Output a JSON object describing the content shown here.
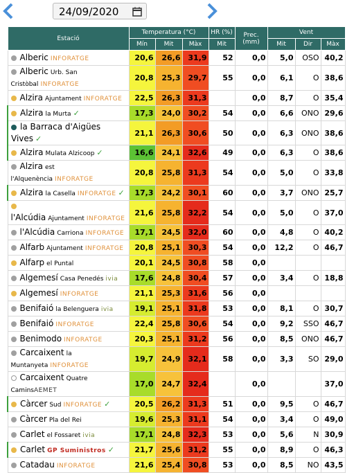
{
  "header": {
    "date": "24/09/2020"
  },
  "table": {
    "columns": [
      "Estació",
      "Temperatura (°C)",
      "HR (%)",
      "Prec. (mm)",
      "Vent"
    ],
    "subcolumns": [
      "Mín",
      "Mit",
      "Màx",
      "Mit",
      "",
      "Mit",
      "Dir",
      "Màx"
    ],
    "rows": [
      {
        "station": "Alberic",
        "sub": null,
        "tag": "INFORATGE",
        "check": false,
        "dot": "#a0a0a0",
        "values": [
          "20,6",
          "26,6",
          "31,9",
          "52",
          "0,0",
          "5,0",
          "OSO",
          "40,2"
        ]
      },
      {
        "station": "Alberic",
        "sub": "Urb. San Cristòbal",
        "tag": "INFORATGE",
        "check": false,
        "dot": "#a0a0a0",
        "values": [
          "20,8",
          "25,3",
          "29,7",
          "55",
          "0,0",
          "6,1",
          "O",
          "38,6"
        ]
      },
      {
        "station": "Alzira",
        "sub": "Ajuntament",
        "tag": "INFORATGE",
        "check": false,
        "dot": "#e8b84a",
        "values": [
          "22,5",
          "26,3",
          "31,3",
          null,
          "0,0",
          "8,7",
          "O",
          "35,4"
        ]
      },
      {
        "station": "Alzira",
        "sub": "la Murta",
        "tag": null,
        "check": true,
        "dot": "#e8b84a",
        "values": [
          "17,3",
          "24,0",
          "30,2",
          "54",
          "0,0",
          "6,6",
          "ONO",
          "29,6"
        ]
      },
      {
        "station": "la Barraca d'Aigües Vives",
        "sub": null,
        "tag": null,
        "check": true,
        "dot": "#1e5c5c",
        "values": [
          "21,1",
          "26,3",
          "30,6",
          "50",
          "0,0",
          "6,3",
          "ONO",
          "38,6"
        ]
      },
      {
        "station": "Alzira",
        "sub": "Mulata Alzicoop",
        "tag": null,
        "check": true,
        "dot": "#e8b84a",
        "values": [
          "16,6",
          "24,1",
          "32,6",
          "49",
          "0,0",
          "6,3",
          "O",
          "38,6"
        ]
      },
      {
        "station": "Alzira",
        "sub": "est l'Alquenència",
        "tag": "INFORATGE",
        "check": false,
        "dot": "#a0a0a0",
        "values": [
          "20,8",
          "25,8",
          "31,3",
          "54",
          "0,0",
          "5,0",
          "O",
          "33,8"
        ]
      },
      {
        "station": "Alzira",
        "sub": "la Casella",
        "tag": "INFORATGE",
        "check": true,
        "dot": "#e8b84a",
        "values": [
          "17,3",
          "24,2",
          "30,1",
          "60",
          "0,0",
          "3,7",
          "ONO",
          "25,7"
        ]
      },
      {
        "station": "l'Alcúdia",
        "sub": "Ajuntament",
        "tag": "INFORATGE",
        "check": false,
        "dot": "#e8b84a",
        "values": [
          "21,6",
          "25,8",
          "32,2",
          "54",
          "0,0",
          "5,0",
          "O",
          "37,0"
        ]
      },
      {
        "station": "l'Alcúdia",
        "sub": "Carriona",
        "tag": "INFORATGE",
        "check": false,
        "dot": "#a0a0a0",
        "values": [
          "17,1",
          "24,5",
          "32,0",
          "60",
          "0,0",
          "4,8",
          "O",
          "40,2"
        ]
      },
      {
        "station": "Alfarb",
        "sub": "Ajuntament",
        "tag": "INFORATGE",
        "check": false,
        "dot": "#a0a0a0",
        "values": [
          "20,8",
          "25,1",
          "30,3",
          "54",
          "0,0",
          "12,2",
          "O",
          "46,7"
        ]
      },
      {
        "station": "Alfarp",
        "sub": "el Puntal",
        "tag": null,
        "check": false,
        "dot": "#e8b84a",
        "values": [
          "20,1",
          "24,5",
          "30,8",
          "58",
          "0,0",
          null,
          null,
          null
        ]
      },
      {
        "station": "Algemesí",
        "sub": "Casa Penedés",
        "tag": "ivia",
        "check": false,
        "dot": "#a0a0a0",
        "values": [
          "17,6",
          "24,8",
          "30,4",
          "57",
          "0,0",
          "3,4",
          "O",
          "18,8"
        ]
      },
      {
        "station": "Algemesí",
        "sub": null,
        "tag": "INFORATGE",
        "check": false,
        "dot": "#e8b84a",
        "values": [
          "21,1",
          "25,3",
          "31,6",
          "56",
          "0,0",
          null,
          null,
          null
        ]
      },
      {
        "station": "Benifaió",
        "sub": "la Belenguera",
        "tag": "ivia",
        "check": false,
        "dot": "#a0a0a0",
        "values": [
          "19,1",
          "25,1",
          "31,8",
          "53",
          "0,0",
          "8,1",
          "O",
          "30,7"
        ]
      },
      {
        "station": "Benifaió",
        "sub": null,
        "tag": "INFORATGE",
        "check": false,
        "dot": "#a0a0a0",
        "values": [
          "22,4",
          "25,8",
          "30,6",
          "54",
          "0,0",
          "9,2",
          "SSO",
          "46,7"
        ]
      },
      {
        "station": "Benimodo",
        "sub": null,
        "tag": "INFORATGE",
        "check": false,
        "dot": "#a0a0a0",
        "values": [
          "20,3",
          "25,1",
          "31,2",
          "56",
          "0,0",
          "8,5",
          "ONO",
          "46,7"
        ]
      },
      {
        "station": "Carcaixent",
        "sub": "la Muntanyeta",
        "tag": "INFORATGE",
        "check": false,
        "dot": "#a0a0a0",
        "values": [
          "19,7",
          "24,9",
          "32,1",
          "58",
          "0,0",
          "3,3",
          "SO",
          "29,0"
        ]
      },
      {
        "station": "Carcaixent",
        "sub": "Quatre Camins",
        "tag": "AEMET",
        "check": false,
        "dot": "#ffffff",
        "values": [
          "17,0",
          "24,7",
          "32,4",
          null,
          "0,0",
          null,
          null,
          "37,0"
        ]
      },
      {
        "station": "Càrcer",
        "sub": "Sud",
        "tag": "INFORATGE",
        "check": true,
        "dot": "#e8b84a",
        "values": [
          "20,5",
          "26,2",
          "31,3",
          "51",
          "0,0",
          "9,5",
          "O",
          "46,7"
        ]
      },
      {
        "station": "Càrcer",
        "sub": "Pla del Rei",
        "tag": null,
        "check": false,
        "dot": "#a0a0a0",
        "values": [
          "19,6",
          "25,3",
          "31,1",
          "54",
          "0,0",
          "3,4",
          "O",
          "49,0"
        ]
      },
      {
        "station": "Carlet",
        "sub": "el Fossaret",
        "tag": "ivia",
        "check": false,
        "dot": "#a0a0a0",
        "values": [
          "17,1",
          "24,8",
          "32,3",
          "53",
          "0,0",
          "5,6",
          "N",
          "30,9"
        ]
      },
      {
        "station": "Carlet",
        "sub": null,
        "tag": "GP Suministros",
        "check": true,
        "dot": "#e8b84a",
        "values": [
          "21,7",
          "25,6",
          "31,2",
          "55",
          "0,0",
          "8,9",
          "O",
          "46,3"
        ]
      },
      {
        "station": "Catadau",
        "sub": null,
        "tag": "INFORATGE",
        "check": false,
        "dot": "#a0a0a0",
        "values": [
          "21,6",
          "25,4",
          "30,8",
          "53",
          "0,0",
          "8,5",
          "NO",
          "43,5"
        ]
      }
    ]
  }
}
